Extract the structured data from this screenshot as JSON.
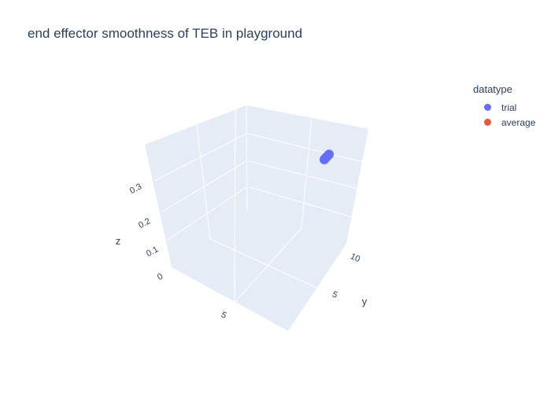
{
  "chart_data": {
    "type": "scatter",
    "title": "end effector smoothness of TEB in playground",
    "axes": {
      "x": {
        "label": "",
        "ticks": [
          "5"
        ]
      },
      "y": {
        "label": "y",
        "ticks": [
          "5",
          "10"
        ]
      },
      "z": {
        "label": "z",
        "ticks": [
          "0",
          "0.1",
          "0.2",
          "0.3"
        ]
      }
    },
    "legend": {
      "title": "datatype",
      "placement": "top-right",
      "entries": [
        {
          "name": "trial",
          "color": "#636efa"
        },
        {
          "name": "average",
          "color": "#ef553b"
        }
      ]
    },
    "series": [
      {
        "name": "trial",
        "color": "#636efa",
        "points": [
          {
            "x": 1.2,
            "y": 11.6,
            "z": 0.38
          },
          {
            "x": 1.4,
            "y": 11.8,
            "z": 0.382
          },
          {
            "x": 1.1,
            "y": 11.5,
            "z": 0.379
          },
          {
            "x": 1.6,
            "y": 12.0,
            "z": 0.384
          },
          {
            "x": 1.3,
            "y": 11.7,
            "z": 0.381
          },
          {
            "x": 1.7,
            "y": 12.1,
            "z": 0.385
          }
        ]
      }
    ]
  }
}
